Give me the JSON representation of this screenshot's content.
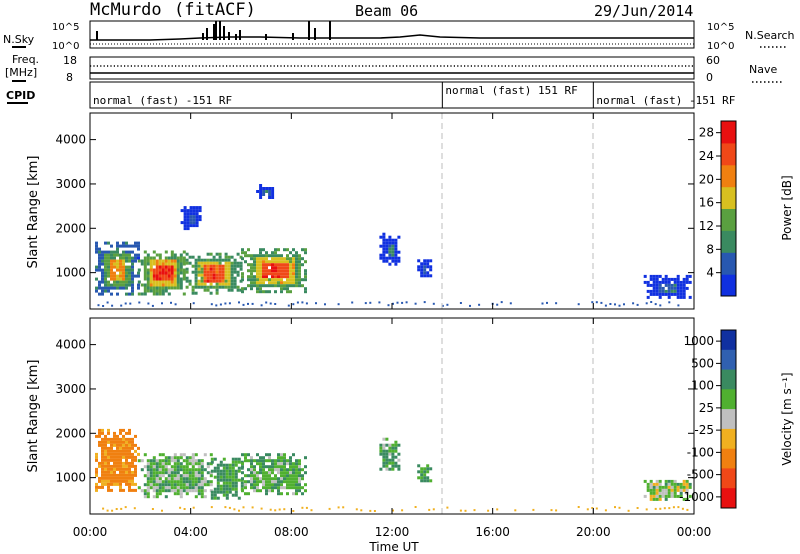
{
  "header": {
    "radar": "McMurdo",
    "mode": "(fitACF)",
    "beam": "Beam 06",
    "date": "29/Jun/2014"
  },
  "strip": {
    "nsky_label": "N.Sky",
    "nsky_ticks": [
      "10^5",
      "10^0"
    ],
    "nsearch_label": "N.Search",
    "nsearch_ticks": [
      "10^5",
      "10^0"
    ],
    "freq_label": "Freq.",
    "freq_unit": "[MHz]",
    "freq_ticks": [
      "18",
      "8"
    ],
    "nave_label": "Nave",
    "nave_ticks": [
      "60",
      "0"
    ],
    "cpid_label": "CPID",
    "cpid_segments": [
      {
        "label": "normal (fast) -151 RF",
        "start_h": 0,
        "end_h": 14
      },
      {
        "label": "normal (fast) 151 RF",
        "start_h": 14,
        "end_h": 20
      },
      {
        "label": "normal (fast) -151 RF",
        "start_h": 20,
        "end_h": 24
      }
    ]
  },
  "chart_data": [
    {
      "type": "heatmap",
      "panel": "power",
      "ylabel": "Slant Range [km]",
      "yticks": [
        "1000",
        "2000",
        "3000",
        "4000"
      ],
      "ylim": [
        180,
        4600
      ],
      "xlim_hours": [
        0,
        24
      ],
      "colorbar_label": "Power [dB]",
      "colorbar_ticks": [
        "4",
        "8",
        "12",
        "16",
        "20",
        "24",
        "28"
      ],
      "colorbar_range": [
        0,
        30
      ],
      "colors": [
        "#1030e0",
        "#2858b0",
        "#3a8a60",
        "#5aa040",
        "#d8c020",
        "#f08010",
        "#f04818",
        "#e81010"
      ],
      "regions": [
        {
          "t0": 0.2,
          "t1": 1.9,
          "r0": 500,
          "r1": 1700,
          "level": 20
        },
        {
          "t0": 1.9,
          "t1": 3.8,
          "r0": 550,
          "r1": 1500,
          "level": 26
        },
        {
          "t0": 3.8,
          "t1": 6.0,
          "r0": 550,
          "r1": 1450,
          "level": 24
        },
        {
          "t0": 6.0,
          "t1": 8.6,
          "r0": 600,
          "r1": 1550,
          "level": 25
        },
        {
          "t0": 3.6,
          "t1": 4.4,
          "r0": 2000,
          "r1": 2500,
          "level": 6
        },
        {
          "t0": 6.6,
          "t1": 7.3,
          "r0": 2700,
          "r1": 3000,
          "level": 6
        },
        {
          "t0": 11.5,
          "t1": 12.3,
          "r0": 1200,
          "r1": 1900,
          "level": 8
        },
        {
          "t0": 13.0,
          "t1": 13.5,
          "r0": 900,
          "r1": 1300,
          "level": 7
        },
        {
          "t0": 22.0,
          "t1": 23.8,
          "r0": 450,
          "r1": 950,
          "level": 7
        }
      ]
    },
    {
      "type": "heatmap",
      "panel": "velocity",
      "ylabel": "Slant Range [km]",
      "yticks": [
        "1000",
        "2000",
        "3000",
        "4000"
      ],
      "ylim": [
        180,
        4600
      ],
      "xlim_hours": [
        0,
        24
      ],
      "xlabel": "Time UT",
      "xticks": [
        "00:00",
        "04:00",
        "08:00",
        "12:00",
        "16:00",
        "20:00",
        "00:00"
      ],
      "colorbar_label": "Velocity [m s⁻¹]",
      "colorbar_ticks": [
        "1000",
        "500",
        "100",
        "25",
        "-25",
        "-100",
        "-500",
        "-1000"
      ],
      "colorbar_range": [
        -1000,
        1000
      ],
      "colors": [
        "#e81010",
        "#f04818",
        "#f08010",
        "#f0b020",
        "#c0c0c0",
        "#50b030",
        "#3a8a60",
        "#3060b0",
        "#1030a0"
      ],
      "regions": [
        {
          "t0": 0.2,
          "t1": 1.9,
          "r0": 700,
          "r1": 2100,
          "velocity": -150
        },
        {
          "t0": 1.9,
          "t1": 4.8,
          "r0": 600,
          "r1": 1550,
          "velocity": 60
        },
        {
          "t0": 4.8,
          "t1": 6.0,
          "r0": 550,
          "r1": 1450,
          "velocity": 120
        },
        {
          "t0": 6.0,
          "t1": 8.6,
          "r0": 650,
          "r1": 1550,
          "velocity": 80
        },
        {
          "t0": 11.5,
          "t1": 12.3,
          "r0": 1200,
          "r1": 1900,
          "velocity": 90
        },
        {
          "t0": 13.0,
          "t1": 13.5,
          "r0": 900,
          "r1": 1300,
          "velocity": 90
        },
        {
          "t0": 22.0,
          "t1": 23.8,
          "r0": 500,
          "r1": 950,
          "velocity": 30
        }
      ]
    }
  ]
}
